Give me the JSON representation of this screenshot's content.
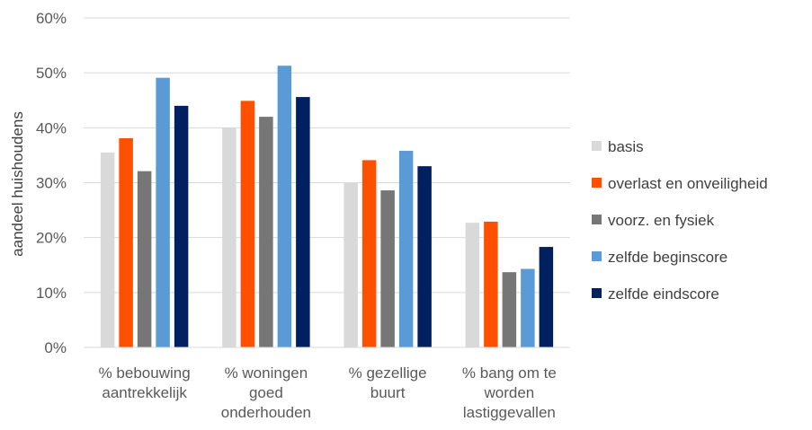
{
  "chart_data": {
    "type": "bar",
    "title": "",
    "xlabel": "",
    "ylabel": "aandeel huishoudens",
    "ylim": [
      0,
      0.6
    ],
    "yticks": [
      "0%",
      "10%",
      "20%",
      "30%",
      "40%",
      "50%",
      "60%"
    ],
    "grid": true,
    "legend_position": "right",
    "categories": [
      [
        "% bebouwing",
        "aantrekkelijk"
      ],
      [
        "% woningen",
        "goed",
        "onderhouden"
      ],
      [
        "% gezellige",
        "buurt"
      ],
      [
        "% bang om te",
        "worden",
        "lastiggevallen"
      ]
    ],
    "series": [
      {
        "name": "basis",
        "color": "#d9d9d9",
        "values": [
          0.355,
          0.4,
          0.3,
          0.227
        ]
      },
      {
        "name": "overlast en onveiligheid",
        "color": "#ff4f00",
        "values": [
          0.381,
          0.449,
          0.341,
          0.229
        ]
      },
      {
        "name": "voorz. en fysiek",
        "color": "#767676",
        "values": [
          0.321,
          0.42,
          0.286,
          0.137
        ]
      },
      {
        "name": "zelfde beginscore",
        "color": "#5b9bd5",
        "values": [
          0.491,
          0.513,
          0.358,
          0.143
        ]
      },
      {
        "name": "zelfde eindscore",
        "color": "#002060",
        "values": [
          0.44,
          0.456,
          0.33,
          0.183
        ]
      }
    ]
  }
}
